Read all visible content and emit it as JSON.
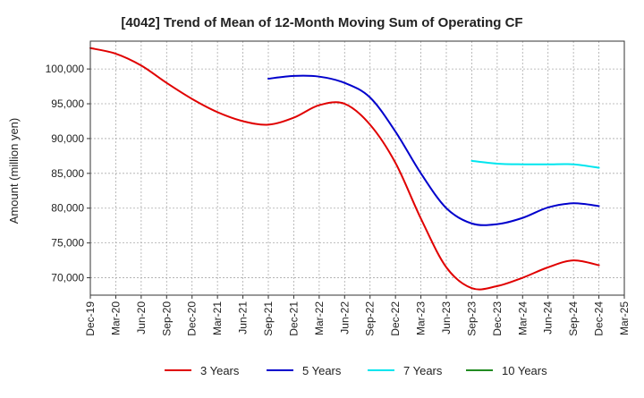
{
  "chart_data": {
    "type": "line",
    "title": "[4042]  Trend of Mean of 12-Month Moving Sum of Operating CF",
    "xlabel": "",
    "ylabel": "Amount (million yen)",
    "ylim": [
      67500,
      104000
    ],
    "y_ticks": [
      70000,
      75000,
      80000,
      85000,
      90000,
      95000,
      100000
    ],
    "y_tick_labels": [
      "70,000",
      "75,000",
      "80,000",
      "85,000",
      "90,000",
      "95,000",
      "100,000"
    ],
    "x_tick_labels": [
      "Dec-19",
      "Mar-20",
      "Jun-20",
      "Sep-20",
      "Dec-20",
      "Mar-21",
      "Jun-21",
      "Sep-21",
      "Dec-21",
      "Mar-22",
      "Jun-22",
      "Sep-22",
      "Dec-22",
      "Mar-23",
      "Jun-23",
      "Sep-23",
      "Dec-23",
      "Mar-24",
      "Jun-24",
      "Sep-24",
      "Dec-24",
      "Mar-25"
    ],
    "grid": true,
    "series": [
      {
        "name": "3 Years",
        "color": "#e00000",
        "points": [
          [
            "Dec-19",
            103000
          ],
          [
            "Mar-20",
            102200
          ],
          [
            "Jun-20",
            100500
          ],
          [
            "Sep-20",
            98000
          ],
          [
            "Dec-20",
            95700
          ],
          [
            "Mar-21",
            93800
          ],
          [
            "Jun-21",
            92500
          ],
          [
            "Sep-21",
            92000
          ],
          [
            "Dec-21",
            93000
          ],
          [
            "Mar-22",
            94800
          ],
          [
            "Jun-22",
            95000
          ],
          [
            "Sep-22",
            92000
          ],
          [
            "Dec-22",
            86500
          ],
          [
            "Mar-23",
            78500
          ],
          [
            "Jun-23",
            71500
          ],
          [
            "Sep-23",
            68500
          ],
          [
            "Dec-23",
            68800
          ],
          [
            "Mar-24",
            70000
          ],
          [
            "Jun-24",
            71500
          ],
          [
            "Sep-24",
            72500
          ],
          [
            "Dec-24",
            71800
          ]
        ]
      },
      {
        "name": "5 Years",
        "color": "#0000cc",
        "points": [
          [
            "Sep-21",
            98600
          ],
          [
            "Dec-21",
            99000
          ],
          [
            "Mar-22",
            98900
          ],
          [
            "Jun-22",
            98000
          ],
          [
            "Sep-22",
            95900
          ],
          [
            "Dec-22",
            91000
          ],
          [
            "Mar-23",
            85000
          ],
          [
            "Jun-23",
            80000
          ],
          [
            "Sep-23",
            77800
          ],
          [
            "Dec-23",
            77700
          ],
          [
            "Mar-24",
            78600
          ],
          [
            "Jun-24",
            80100
          ],
          [
            "Sep-24",
            80700
          ],
          [
            "Dec-24",
            80300
          ]
        ]
      },
      {
        "name": "7 Years",
        "color": "#00e5ee",
        "points": [
          [
            "Sep-23",
            86800
          ],
          [
            "Dec-23",
            86400
          ],
          [
            "Mar-24",
            86300
          ],
          [
            "Jun-24",
            86300
          ],
          [
            "Sep-24",
            86300
          ],
          [
            "Dec-24",
            85800
          ]
        ]
      },
      {
        "name": "10 Years",
        "color": "#228b22",
        "points": []
      }
    ]
  }
}
